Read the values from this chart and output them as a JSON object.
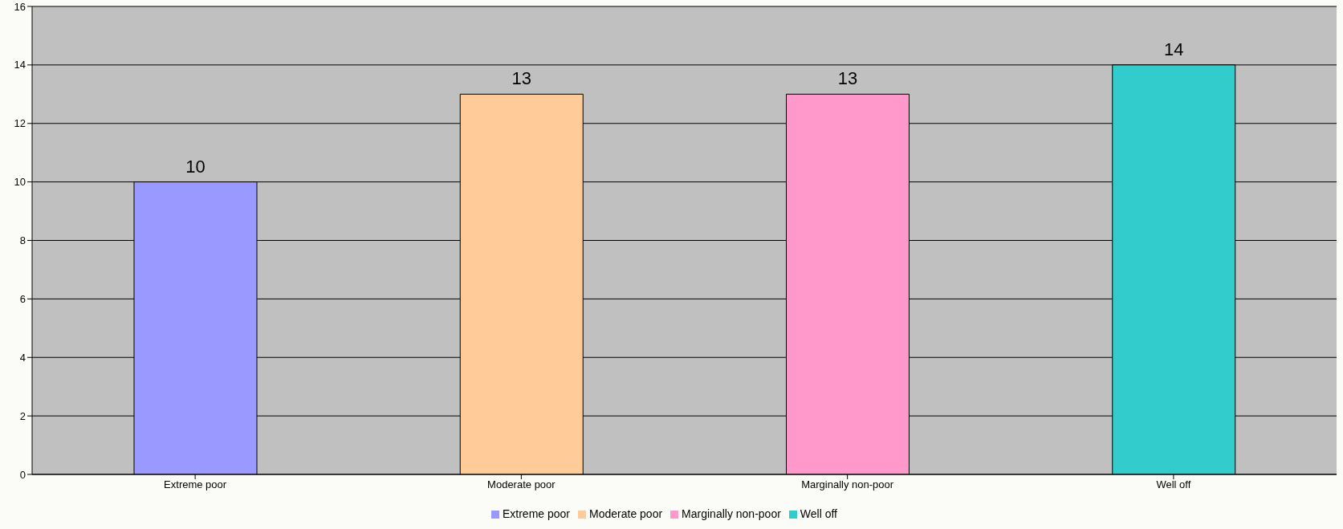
{
  "chart_data": {
    "type": "bar",
    "categories": [
      "Extreme poor",
      "Moderate poor",
      "Marginally non-poor",
      "Well off"
    ],
    "series": [
      {
        "name": "Extreme poor",
        "color": "#9999ff",
        "values": [
          10,
          null,
          null,
          null
        ]
      },
      {
        "name": "Moderate poor",
        "color": "#ffcc99",
        "values": [
          null,
          13,
          null,
          null
        ]
      },
      {
        "name": "Marginally non-poor",
        "color": "#ff99cc",
        "values": [
          null,
          null,
          13,
          null
        ]
      },
      {
        "name": "Well off",
        "color": "#33cccc",
        "values": [
          null,
          null,
          null,
          14
        ]
      }
    ],
    "stacked": true,
    "ylim": [
      0,
      16
    ],
    "yticks": [
      0,
      2,
      4,
      6,
      8,
      10,
      12,
      14,
      16
    ],
    "grid": "y",
    "legend": "bottom",
    "data_labels": true
  }
}
